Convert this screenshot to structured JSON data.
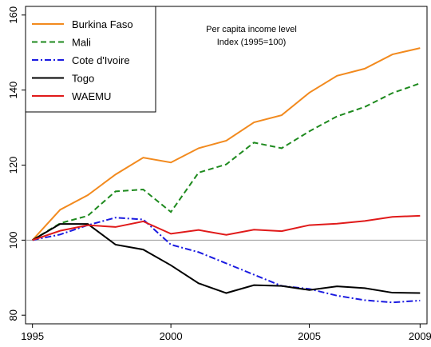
{
  "chart_data": {
    "type": "line",
    "annotation": [
      "Per capita income level",
      "Index (1995=100)"
    ],
    "x": [
      1995,
      1996,
      1997,
      1998,
      1999,
      2000,
      2001,
      2002,
      2003,
      2004,
      2005,
      2006,
      2007,
      2008,
      2009
    ],
    "series": [
      {
        "name": "Burkina Faso",
        "color": "#f28a1e",
        "dash": "solid",
        "values": [
          100,
          108.1,
          112,
          117.5,
          122,
          120.7,
          124.5,
          126.5,
          131.4,
          133.3,
          139.3,
          143.8,
          145.7,
          149.5,
          151.2
        ]
      },
      {
        "name": "Mali",
        "color": "#1e8a1e",
        "dash": "dashed",
        "values": [
          100,
          104.5,
          106.5,
          113,
          113.5,
          107.5,
          118,
          120.2,
          126,
          124.5,
          129,
          133,
          135.5,
          139.2,
          141.8
        ]
      },
      {
        "name": "Cote d'Ivoire",
        "color": "#1a1ae0",
        "dash": "dashdot",
        "values": [
          100,
          101.5,
          104,
          106,
          105.5,
          98.8,
          96.8,
          93.8,
          90.8,
          87.8,
          87,
          85.2,
          84,
          83.4,
          83.9
        ]
      },
      {
        "name": "Togo",
        "color": "#000000",
        "dash": "solid",
        "values": [
          100,
          104.3,
          104.3,
          98.8,
          97.5,
          93.3,
          88.5,
          85.9,
          88,
          87.8,
          86.7,
          87.7,
          87.2,
          86,
          85.9
        ]
      },
      {
        "name": "WAEMU",
        "color": "#e01a1a",
        "dash": "solid",
        "values": [
          100,
          102.5,
          104,
          103.5,
          105,
          101.7,
          102.7,
          101.4,
          102.8,
          102.4,
          104,
          104.4,
          105.1,
          106.2,
          106.5
        ]
      }
    ],
    "hline": 100,
    "xlim": [
      1994.75,
      2009.25
    ],
    "xticks": [
      1995,
      2000,
      2005,
      2009
    ],
    "ylim": [
      77.7,
      162.3
    ],
    "yticks": [
      80,
      100,
      120,
      140,
      160
    ],
    "legend": "top-left"
  }
}
